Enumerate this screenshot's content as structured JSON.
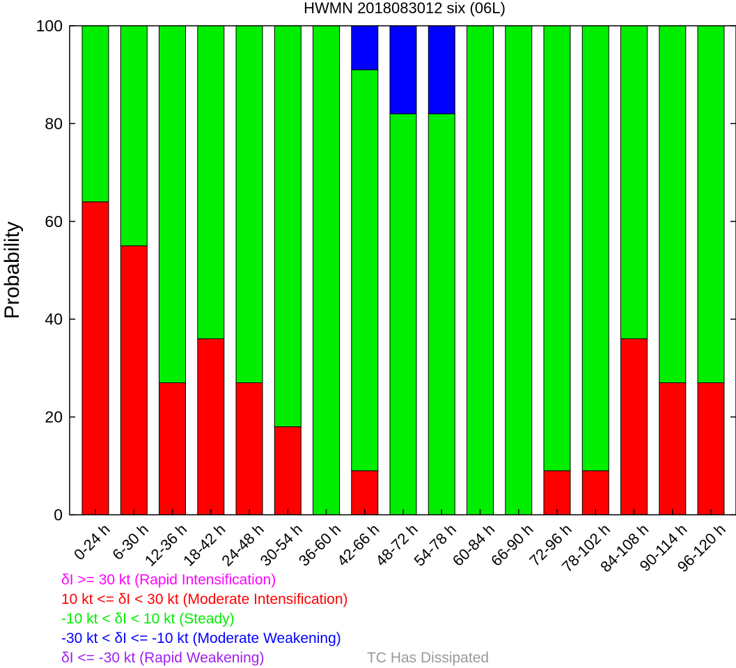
{
  "chart_data": {
    "type": "bar",
    "stacked": true,
    "title": "HWMN 2018083012 six (06L)",
    "xlabel": "",
    "ylabel": "Probability",
    "ylim": [
      0,
      100
    ],
    "yticks": [
      0,
      20,
      40,
      60,
      80,
      100
    ],
    "grid": false,
    "categories": [
      "0-24 h",
      "6-30 h",
      "12-36 h",
      "18-42 h",
      "24-48 h",
      "30-54 h",
      "36-60 h",
      "42-66 h",
      "48-72 h",
      "54-78 h",
      "60-84 h",
      "66-90 h",
      "72-96 h",
      "78-102 h",
      "84-108 h",
      "90-114 h",
      "96-120 h"
    ],
    "series": [
      {
        "key": "ri",
        "color": "#ff00ff",
        "values": [
          0,
          0,
          0,
          0,
          0,
          0,
          0,
          0,
          0,
          0,
          0,
          0,
          0,
          0,
          0,
          0,
          0
        ]
      },
      {
        "key": "mi",
        "color": "#ff0000",
        "values": [
          64,
          55,
          27,
          36,
          27,
          18,
          0,
          9,
          0,
          0,
          0,
          0,
          9,
          9,
          36,
          27,
          27
        ]
      },
      {
        "key": "st",
        "color": "#00ee00",
        "values": [
          36,
          45,
          73,
          64,
          73,
          82,
          100,
          82,
          82,
          82,
          100,
          100,
          91,
          91,
          64,
          73,
          73
        ]
      },
      {
        "key": "mw",
        "color": "#0000ff",
        "values": [
          0,
          0,
          0,
          0,
          0,
          0,
          0,
          9,
          18,
          18,
          0,
          0,
          0,
          0,
          0,
          0,
          0
        ]
      },
      {
        "key": "rw",
        "color": "#a020f0",
        "values": [
          0,
          0,
          0,
          0,
          0,
          0,
          0,
          0,
          0,
          0,
          0,
          0,
          0,
          0,
          0,
          0,
          0
        ]
      }
    ]
  },
  "legend": [
    {
      "key": "ri",
      "text": "δI >= 30 kt (Rapid Intensification)",
      "color": "#ff00ff"
    },
    {
      "key": "mi",
      "text": "10 kt <= δI < 30 kt (Moderate Intensification)",
      "color": "#ff0000"
    },
    {
      "key": "st",
      "text": "-10 kt < δI < 10 kt (Steady)",
      "color": "#00ee00"
    },
    {
      "key": "mw",
      "text": "-30 kt < δI <= -10 kt (Moderate Weakening)",
      "color": "#0000ff"
    },
    {
      "key": "rw",
      "text": "δI <= -30 kt (Rapid Weakening)",
      "color": "#a020f0"
    },
    {
      "key": "td",
      "text": "TC Has Dissipated",
      "color": "#999999"
    }
  ]
}
